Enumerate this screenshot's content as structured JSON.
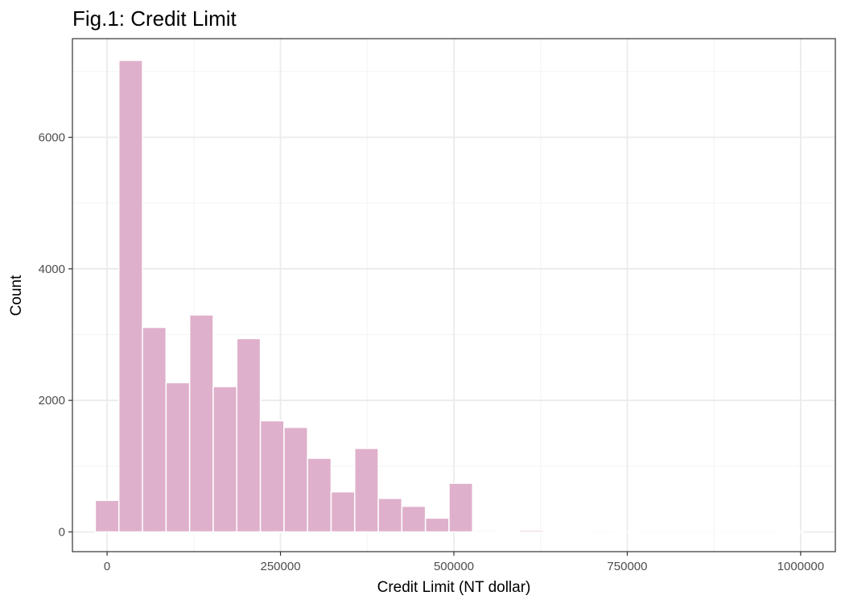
{
  "chart_data": {
    "type": "bar",
    "title": "Fig.1: Credit Limit",
    "xlabel": "Credit Limit (NT dollar)",
    "ylabel": "Count",
    "xlim": [
      -50000,
      1050000
    ],
    "ylim": [
      -300,
      7500
    ],
    "x_ticks": [
      0,
      250000,
      500000,
      750000,
      1000000
    ],
    "x_tick_labels": [
      "0",
      "250000",
      "500000",
      "750000",
      "1000000"
    ],
    "y_ticks": [
      0,
      2000,
      4000,
      6000
    ],
    "y_tick_labels": [
      "0",
      "2000",
      "4000",
      "6000"
    ],
    "grid": true,
    "bin_width": 34000,
    "bins": [
      {
        "center": 0,
        "count": 480
      },
      {
        "center": 34000,
        "count": 7170
      },
      {
        "center": 68000,
        "count": 3110
      },
      {
        "center": 102000,
        "count": 2270
      },
      {
        "center": 136000,
        "count": 3300
      },
      {
        "center": 170000,
        "count": 2210
      },
      {
        "center": 204000,
        "count": 2940
      },
      {
        "center": 238000,
        "count": 1690
      },
      {
        "center": 272000,
        "count": 1590
      },
      {
        "center": 306000,
        "count": 1120
      },
      {
        "center": 340000,
        "count": 610
      },
      {
        "center": 374000,
        "count": 1270
      },
      {
        "center": 408000,
        "count": 510
      },
      {
        "center": 442000,
        "count": 390
      },
      {
        "center": 476000,
        "count": 210
      },
      {
        "center": 510000,
        "count": 740
      },
      {
        "center": 544000,
        "count": 20
      },
      {
        "center": 578000,
        "count": 3
      },
      {
        "center": 612000,
        "count": 25
      },
      {
        "center": 646000,
        "count": 5
      },
      {
        "center": 680000,
        "count": 2
      },
      {
        "center": 714000,
        "count": 1
      },
      {
        "center": 748000,
        "count": 2
      },
      {
        "center": 782000,
        "count": 1
      },
      {
        "center": 816000,
        "count": 1
      },
      {
        "center": 850000,
        "count": 1
      },
      {
        "center": 884000,
        "count": 1
      },
      {
        "center": 918000,
        "count": 1
      },
      {
        "center": 952000,
        "count": 1
      },
      {
        "center": 986000,
        "count": 2
      }
    ],
    "colors": {
      "bar_fill": "#dfb0cb",
      "bar_stroke": "#ffffff",
      "grid_major": "#ebebeb",
      "grid_minor": "#f3f3f3",
      "panel_border": "#333333",
      "tick": "#333333"
    }
  }
}
